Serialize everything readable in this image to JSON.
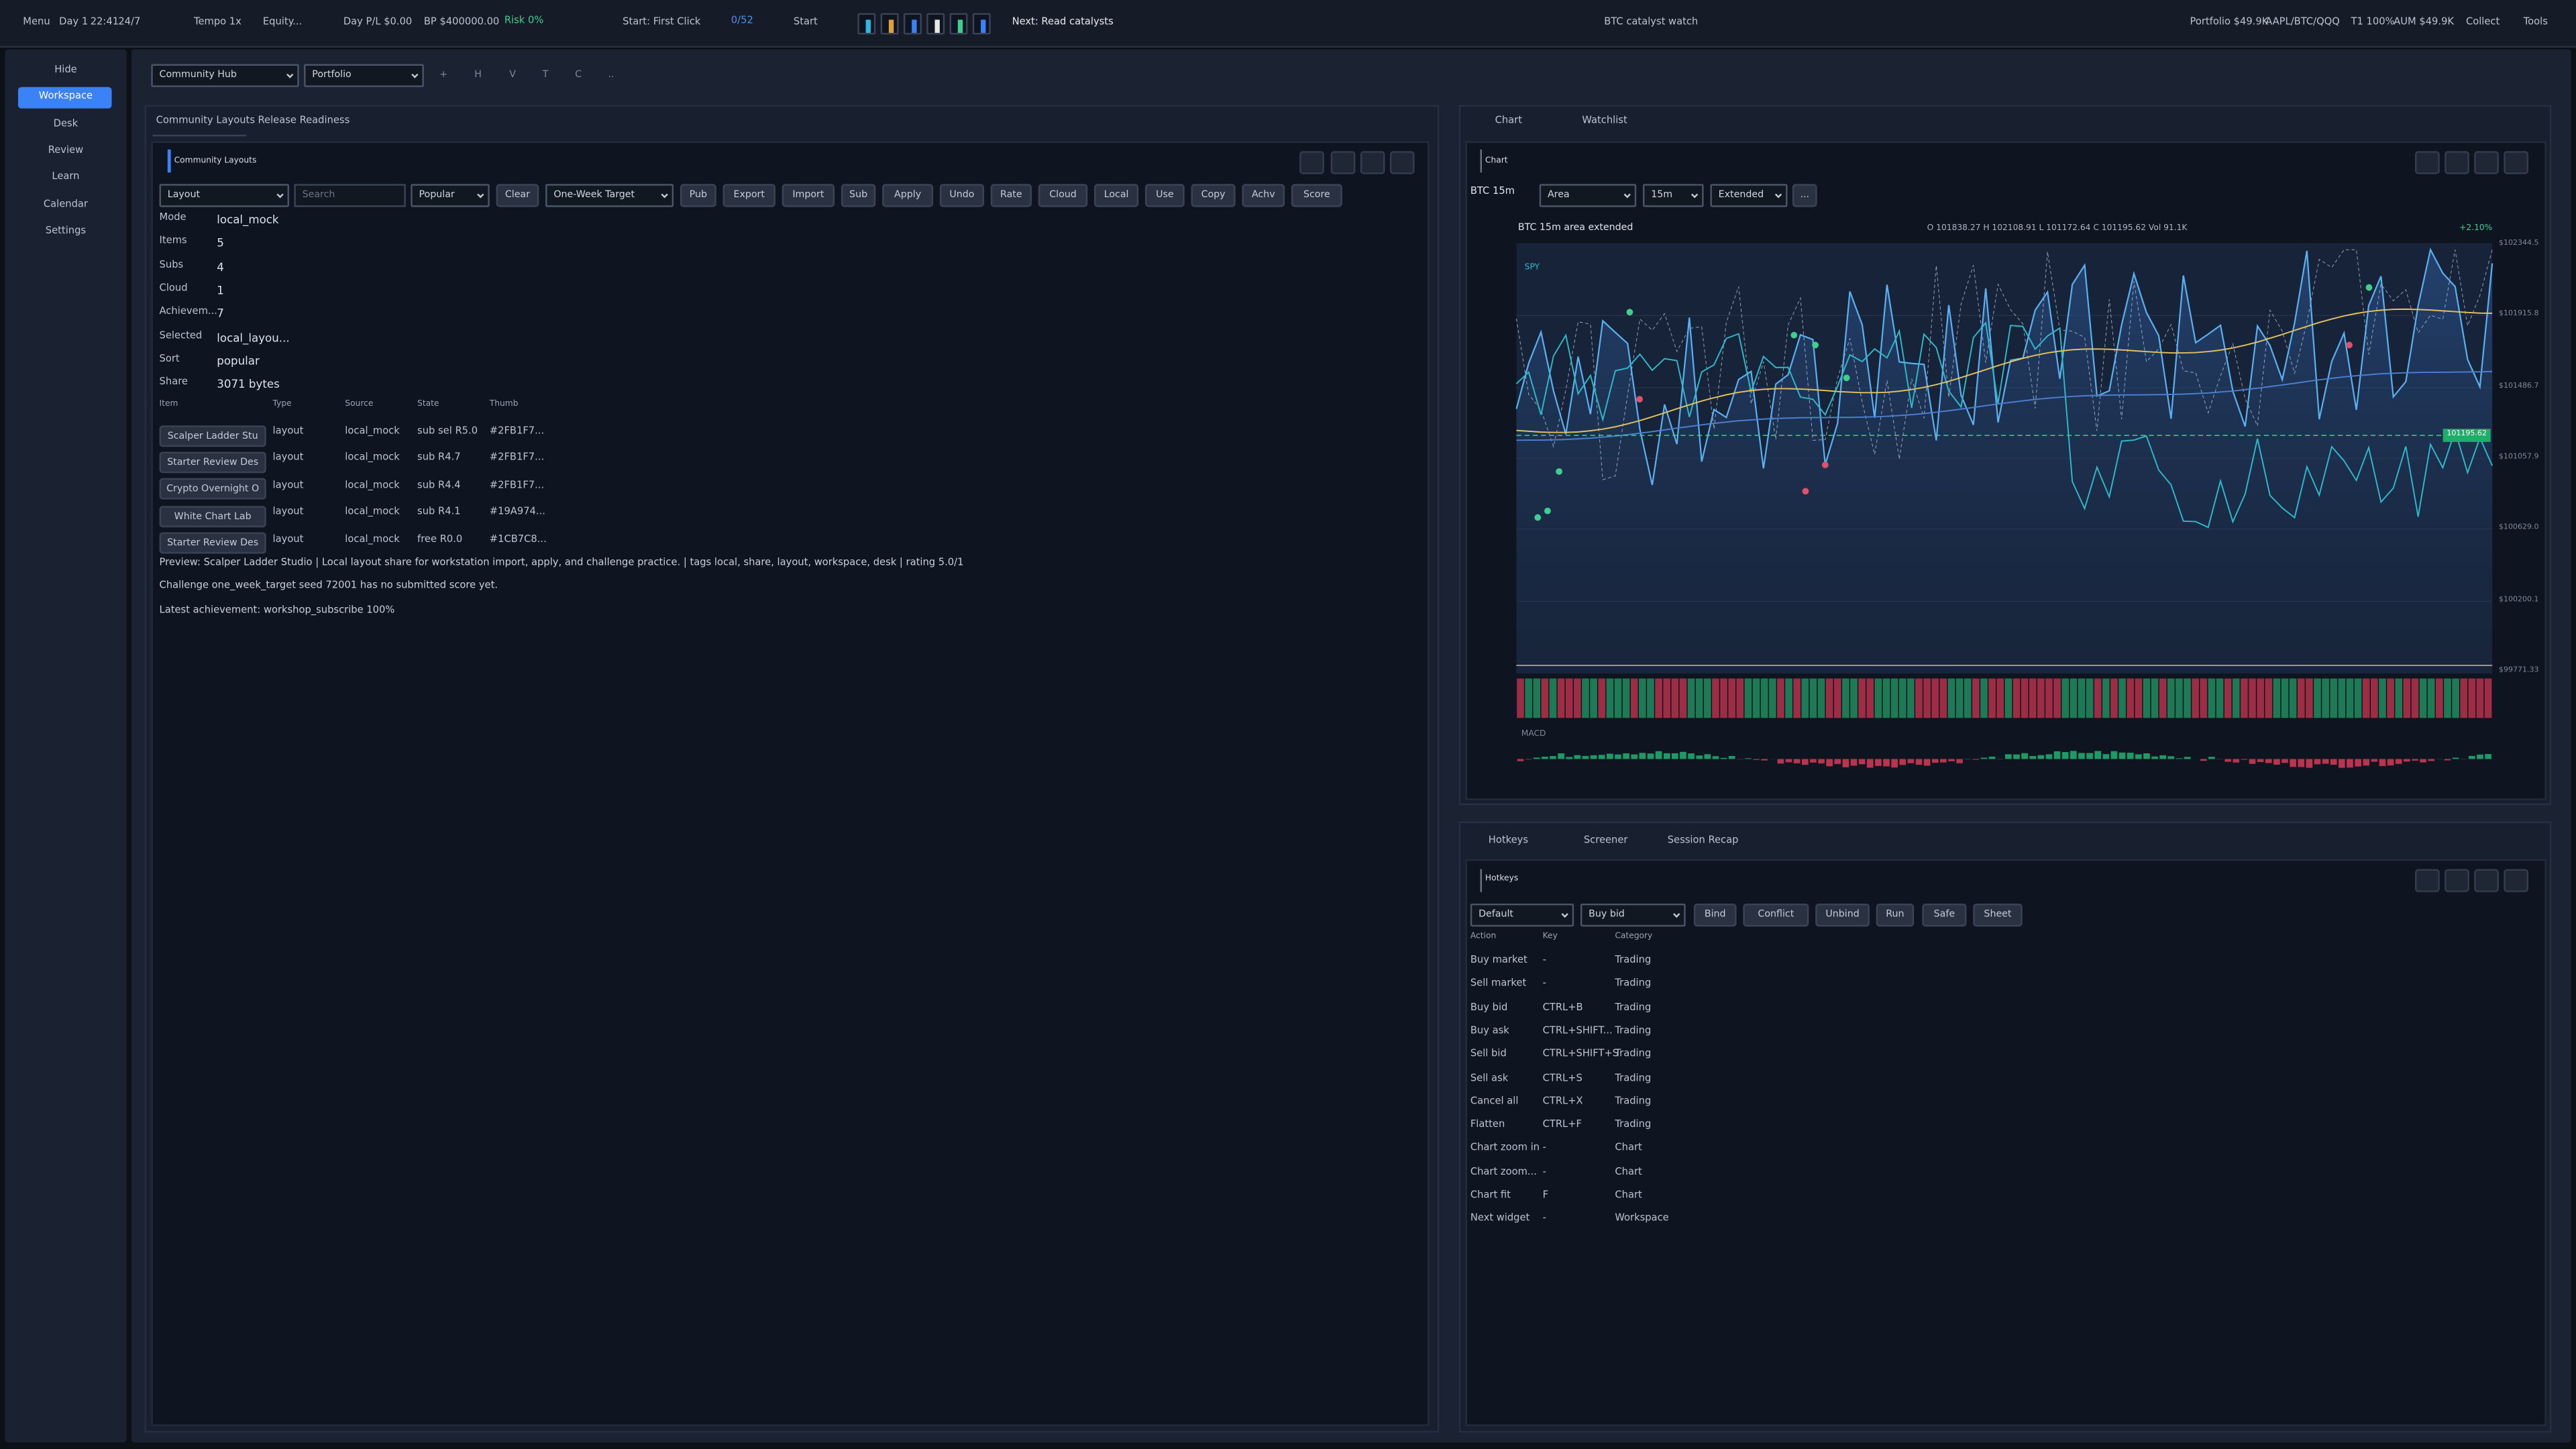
{
  "top_bar": {
    "menu": "Menu",
    "day": "Day 1",
    "time": "22:41",
    "session": "24/7",
    "tempo": "Tempo 1x",
    "equity": "Equity...",
    "day_pl": "Day P/L $0.00",
    "bp": "BP $400000.00",
    "risk": "Risk 0%",
    "start_hint": "Start: First Click",
    "progress": "0/52",
    "start": "Start",
    "next": "Next: Read catalysts",
    "center": "BTC catalyst watch",
    "portfolio": "Portfolio $49.9K",
    "symbols": "AAPL/BTC/QQQ",
    "t1": "T1 100%",
    "aum": "AUM $49.9K",
    "collect": "Collect",
    "tools": "Tools"
  },
  "sidebar": [
    "Hide",
    "Workspace",
    "Desk",
    "Review",
    "Learn",
    "Calendar",
    "Settings"
  ],
  "toolbar": {
    "selects": [
      "Community Hub",
      "Portfolio"
    ],
    "buttons": [
      "+",
      "H",
      "V",
      "T",
      "C",
      ".."
    ]
  },
  "left_panel": {
    "tabs": [
      "Community Layouts",
      "Release Readiness"
    ],
    "title": "Community Layouts",
    "controls": {
      "layout": "Layout",
      "search": "Search",
      "sort": "Popular",
      "clear": "Clear",
      "target": "One-Week Target",
      "buttons": [
        "Pub",
        "Export",
        "Import",
        "Sub",
        "Apply",
        "Undo",
        "Rate",
        "Cloud",
        "Local",
        "Use",
        "Copy",
        "Achv",
        "Score"
      ]
    },
    "stats": [
      [
        "Mode",
        "local_mock"
      ],
      [
        "Items",
        "5"
      ],
      [
        "Subs",
        "4"
      ],
      [
        "Cloud",
        "1"
      ],
      [
        "Achievem...",
        "7"
      ],
      [
        "Selected",
        "local_layou..."
      ],
      [
        "Sort",
        "popular"
      ],
      [
        "Share",
        "3071 bytes"
      ]
    ],
    "table": {
      "headers": [
        "Item",
        "Type",
        "Source",
        "State",
        "Thumb"
      ],
      "rows": [
        [
          "Scalper Ladder Stu",
          "layout",
          "local_mock",
          "sub sel R5.0",
          "#2FB1F7..."
        ],
        [
          "Starter Review Des",
          "layout",
          "local_mock",
          "sub  R4.7",
          "#2FB1F7..."
        ],
        [
          "Crypto Overnight O",
          "layout",
          "local_mock",
          "sub  R4.4",
          "#2FB1F7..."
        ],
        [
          "White Chart Lab",
          "layout",
          "local_mock",
          "sub  R4.1",
          "#19A974..."
        ],
        [
          "Starter Review Des",
          "layout",
          "local_mock",
          "free  R0.0",
          "#1CB7C8..."
        ]
      ]
    },
    "notes": [
      "Preview: Scalper Ladder Studio | Local layout share for workstation import, apply, and challenge practice. | tags local, share, layout, workspace, desk | rating 5.0/1",
      "Challenge one_week_target seed 72001 has no submitted score yet.",
      "Latest achievement: workshop_subscribe 100%"
    ]
  },
  "chart_panel": {
    "tabs": [
      "Chart",
      "Watchlist"
    ],
    "title": "Chart",
    "symbol": "BTC 15m",
    "selects": [
      "Area",
      "15m",
      "Extended"
    ],
    "more": "...",
    "header": "BTC  15m  area  extended",
    "ohlc": "O 101838.27 H 102108.91 L 101172.64 C 101195.62 Vol 91.1K",
    "change": "+2.10%",
    "legend": "SPY",
    "price_labels": [
      "$102344.5",
      "$101915.8",
      "$101486.7",
      "$101057.9",
      "$100629.0",
      "$100200.1",
      "$99771.33"
    ],
    "last_price": "101195.62",
    "macd": "MACD"
  },
  "hotkeys_panel": {
    "tabs": [
      "Hotkeys",
      "Screener",
      "Session Recap"
    ],
    "title": "Hotkeys",
    "selects": [
      "Default",
      "Buy bid"
    ],
    "buttons": [
      "Bind",
      "Conflict",
      "Unbind",
      "Run",
      "Safe",
      "Sheet"
    ],
    "headers": [
      "Action",
      "Key",
      "Category"
    ],
    "rows": [
      [
        "Buy market",
        "-",
        "Trading"
      ],
      [
        "Sell market",
        "-",
        "Trading"
      ],
      [
        "Buy bid",
        "CTRL+B",
        "Trading"
      ],
      [
        "Buy ask",
        "CTRL+SHIFT...",
        "Trading"
      ],
      [
        "Sell bid",
        "CTRL+SHIFT+S",
        "Trading"
      ],
      [
        "Sell ask",
        "CTRL+S",
        "Trading"
      ],
      [
        "Cancel all",
        "CTRL+X",
        "Trading"
      ],
      [
        "Flatten",
        "CTRL+F",
        "Trading"
      ],
      [
        "Chart zoom in",
        "-",
        "Chart"
      ],
      [
        "Chart zoom...",
        "-",
        "Chart"
      ],
      [
        "Chart fit",
        "F",
        "Chart"
      ],
      [
        "Next widget",
        "-",
        "Workspace"
      ]
    ]
  }
}
